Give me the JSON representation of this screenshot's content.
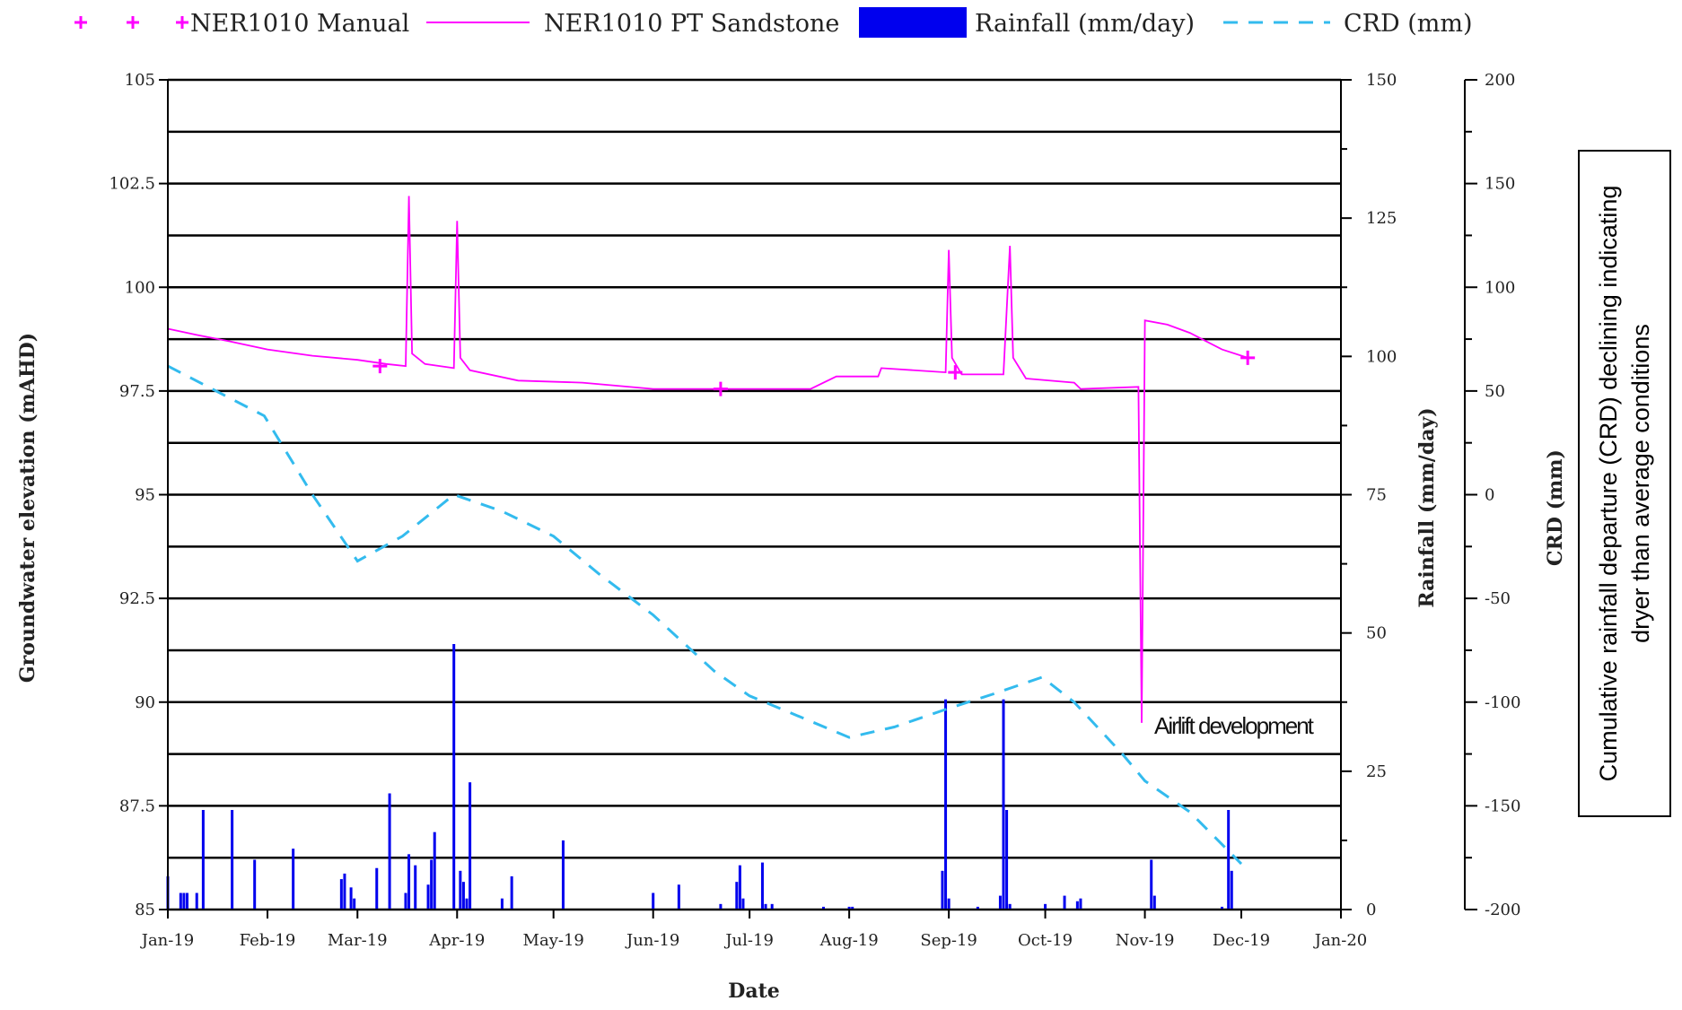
{
  "chart_data": {
    "type": "line",
    "title": "",
    "xlabel": "Date",
    "ylabel": "Groundwater elevation (mAHD)",
    "ylabel_right": "Rainfall (mm/day)",
    "ylabel_right2": "CRD (mm)",
    "xlim": [
      "2019-01-01",
      "2020-01-01"
    ],
    "ylim": [
      85,
      105
    ],
    "ylim_right": [
      0,
      150
    ],
    "ylim_right2": [
      -200,
      200
    ],
    "grid": true,
    "legend_position": "top",
    "x_ticks": [
      "2019-01-01",
      "2019-02-01",
      "2019-03-01",
      "2019-04-01",
      "2019-05-01",
      "2019-06-01",
      "2019-07-01",
      "2019-08-01",
      "2019-09-01",
      "2019-10-01",
      "2019-11-01",
      "2019-12-01",
      "2020-01-01"
    ],
    "x_tick_labels": [
      "Jan-19",
      "Feb-19",
      "Mar-19",
      "Apr-19",
      "May-19",
      "Jun-19",
      "Jul-19",
      "Aug-19",
      "Sep-19",
      "Oct-19",
      "Nov-19",
      "Dec-19",
      "Jan-20"
    ],
    "y_ticks": [
      85,
      87.5,
      90,
      92.5,
      95,
      97.5,
      100,
      102.5,
      105
    ],
    "y_tick_labels": [
      "85",
      "87.5",
      "90",
      "92.5",
      "95",
      "97.5",
      "100",
      "102.5",
      "105"
    ],
    "y_right_ticks": [
      0,
      25,
      50,
      75,
      100,
      125,
      150
    ],
    "y_right_tick_labels": [
      "0",
      "25",
      "50",
      "75",
      "100",
      "125",
      "150"
    ],
    "y_right2_ticks": [
      -200,
      -150,
      -100,
      -50,
      0,
      50,
      100,
      150,
      200
    ],
    "y_right2_tick_labels": [
      "-200",
      "-150",
      "-100",
      "-50",
      "0",
      "50",
      "100",
      "150",
      "200"
    ],
    "series": [
      {
        "name": "NER1010 Manual",
        "kind": "markers",
        "axis": "left",
        "color": "#ff00ff",
        "points": [
          [
            "2019-03-08",
            98.1
          ],
          [
            "2019-06-22",
            97.55
          ],
          [
            "2019-09-03",
            97.95
          ],
          [
            "2019-12-03",
            98.3
          ]
        ]
      },
      {
        "name": "NER1010 PT Sandstone",
        "kind": "line",
        "axis": "left",
        "color": "#ff00ff",
        "points": [
          [
            "2019-01-01",
            99.0
          ],
          [
            "2019-01-10",
            98.85
          ],
          [
            "2019-01-20",
            98.7
          ],
          [
            "2019-02-01",
            98.5
          ],
          [
            "2019-02-15",
            98.35
          ],
          [
            "2019-03-01",
            98.25
          ],
          [
            "2019-03-10",
            98.15
          ],
          [
            "2019-03-16",
            98.1
          ],
          [
            "2019-03-17",
            102.2
          ],
          [
            "2019-03-18",
            98.4
          ],
          [
            "2019-03-22",
            98.15
          ],
          [
            "2019-03-31",
            98.05
          ],
          [
            "2019-04-01",
            101.6
          ],
          [
            "2019-04-02",
            98.3
          ],
          [
            "2019-04-05",
            98.0
          ],
          [
            "2019-04-20",
            97.75
          ],
          [
            "2019-05-10",
            97.7
          ],
          [
            "2019-06-01",
            97.55
          ],
          [
            "2019-07-01",
            97.55
          ],
          [
            "2019-07-20",
            97.55
          ],
          [
            "2019-07-28",
            97.85
          ],
          [
            "2019-08-05",
            97.85
          ],
          [
            "2019-08-10",
            97.85
          ],
          [
            "2019-08-11",
            98.05
          ],
          [
            "2019-08-31",
            97.95
          ],
          [
            "2019-09-01",
            100.9
          ],
          [
            "2019-09-02",
            98.3
          ],
          [
            "2019-09-05",
            97.9
          ],
          [
            "2019-09-18",
            97.9
          ],
          [
            "2019-09-20",
            101.0
          ],
          [
            "2019-09-21",
            98.3
          ],
          [
            "2019-09-25",
            97.8
          ],
          [
            "2019-10-10",
            97.7
          ],
          [
            "2019-10-12",
            97.55
          ],
          [
            "2019-10-30",
            97.6
          ],
          [
            "2019-10-31",
            89.5
          ],
          [
            "2019-11-01",
            99.2
          ],
          [
            "2019-11-08",
            99.1
          ],
          [
            "2019-11-15",
            98.9
          ],
          [
            "2019-11-25",
            98.5
          ],
          [
            "2019-12-03",
            98.3
          ]
        ]
      },
      {
        "name": "Rainfall (mm/day)",
        "kind": "bars",
        "axis": "right",
        "color": "#0000ee",
        "points": [
          [
            "2019-01-01",
            6
          ],
          [
            "2019-01-05",
            3
          ],
          [
            "2019-01-06",
            3
          ],
          [
            "2019-01-07",
            3
          ],
          [
            "2019-01-10",
            3
          ],
          [
            "2019-01-12",
            18
          ],
          [
            "2019-01-21",
            18
          ],
          [
            "2019-01-28",
            9
          ],
          [
            "2019-02-09",
            11
          ],
          [
            "2019-02-24",
            5.5
          ],
          [
            "2019-02-25",
            6.5
          ],
          [
            "2019-02-27",
            4
          ],
          [
            "2019-02-28",
            2
          ],
          [
            "2019-03-07",
            7.5
          ],
          [
            "2019-03-11",
            21
          ],
          [
            "2019-03-16",
            3
          ],
          [
            "2019-03-17",
            10
          ],
          [
            "2019-03-19",
            8
          ],
          [
            "2019-03-23",
            4.5
          ],
          [
            "2019-03-24",
            9
          ],
          [
            "2019-03-25",
            14
          ],
          [
            "2019-03-31",
            48
          ],
          [
            "2019-04-02",
            7
          ],
          [
            "2019-04-03",
            5
          ],
          [
            "2019-04-04",
            2
          ],
          [
            "2019-04-05",
            23
          ],
          [
            "2019-04-15",
            2
          ],
          [
            "2019-04-18",
            6
          ],
          [
            "2019-05-04",
            12.5
          ],
          [
            "2019-06-01",
            3
          ],
          [
            "2019-06-09",
            4.5
          ],
          [
            "2019-06-22",
            1
          ],
          [
            "2019-06-27",
            5
          ],
          [
            "2019-06-28",
            8
          ],
          [
            "2019-06-29",
            2
          ],
          [
            "2019-07-05",
            8.5
          ],
          [
            "2019-07-06",
            1
          ],
          [
            "2019-07-08",
            1
          ],
          [
            "2019-07-24",
            0.5
          ],
          [
            "2019-08-01",
            0.5
          ],
          [
            "2019-08-02",
            0.5
          ],
          [
            "2019-08-30",
            7
          ],
          [
            "2019-08-31",
            38
          ],
          [
            "2019-09-01",
            2
          ],
          [
            "2019-09-10",
            0.5
          ],
          [
            "2019-09-17",
            2.5
          ],
          [
            "2019-09-18",
            38
          ],
          [
            "2019-09-19",
            18
          ],
          [
            "2019-09-20",
            1
          ],
          [
            "2019-10-01",
            1
          ],
          [
            "2019-10-07",
            2.5
          ],
          [
            "2019-10-11",
            1.5
          ],
          [
            "2019-10-12",
            2
          ],
          [
            "2019-11-03",
            9
          ],
          [
            "2019-11-04",
            2.5
          ],
          [
            "2019-11-25",
            0.5
          ],
          [
            "2019-11-27",
            18
          ],
          [
            "2019-11-28",
            7
          ]
        ]
      },
      {
        "name": "CRD (mm)",
        "kind": "dashed-line",
        "axis": "right2",
        "color": "#33bbee",
        "points": [
          [
            "2019-01-01",
            62
          ],
          [
            "2019-01-31",
            38
          ],
          [
            "2019-02-15",
            0
          ],
          [
            "2019-03-01",
            -32
          ],
          [
            "2019-03-15",
            -20
          ],
          [
            "2019-03-31",
            0
          ],
          [
            "2019-04-15",
            -8
          ],
          [
            "2019-05-01",
            -20
          ],
          [
            "2019-05-15",
            -38
          ],
          [
            "2019-06-01",
            -58
          ],
          [
            "2019-06-20",
            -85
          ],
          [
            "2019-07-01",
            -97
          ],
          [
            "2019-07-15",
            -106
          ],
          [
            "2019-08-01",
            -117
          ],
          [
            "2019-08-15",
            -112
          ],
          [
            "2019-09-01",
            -103
          ],
          [
            "2019-09-15",
            -96
          ],
          [
            "2019-09-30",
            -88
          ],
          [
            "2019-10-10",
            -100
          ],
          [
            "2019-10-25",
            -125
          ],
          [
            "2019-11-01",
            -138
          ],
          [
            "2019-11-15",
            -153
          ],
          [
            "2019-12-01",
            -178
          ]
        ]
      }
    ],
    "legend": [
      {
        "label": "NER1010 Manual",
        "symbol": "markers"
      },
      {
        "label": "NER1010 PT Sandstone",
        "symbol": "line"
      },
      {
        "label": "Rainfall (mm/day)",
        "symbol": "bar"
      },
      {
        "label": "CRD (mm)",
        "symbol": "dashed"
      }
    ],
    "annotations": [
      {
        "text": "Airlift development",
        "at": "2019-10-31"
      }
    ],
    "side_note": "Cumulative rainfall departure (CRD) declining indicating dryer than average conditions"
  }
}
